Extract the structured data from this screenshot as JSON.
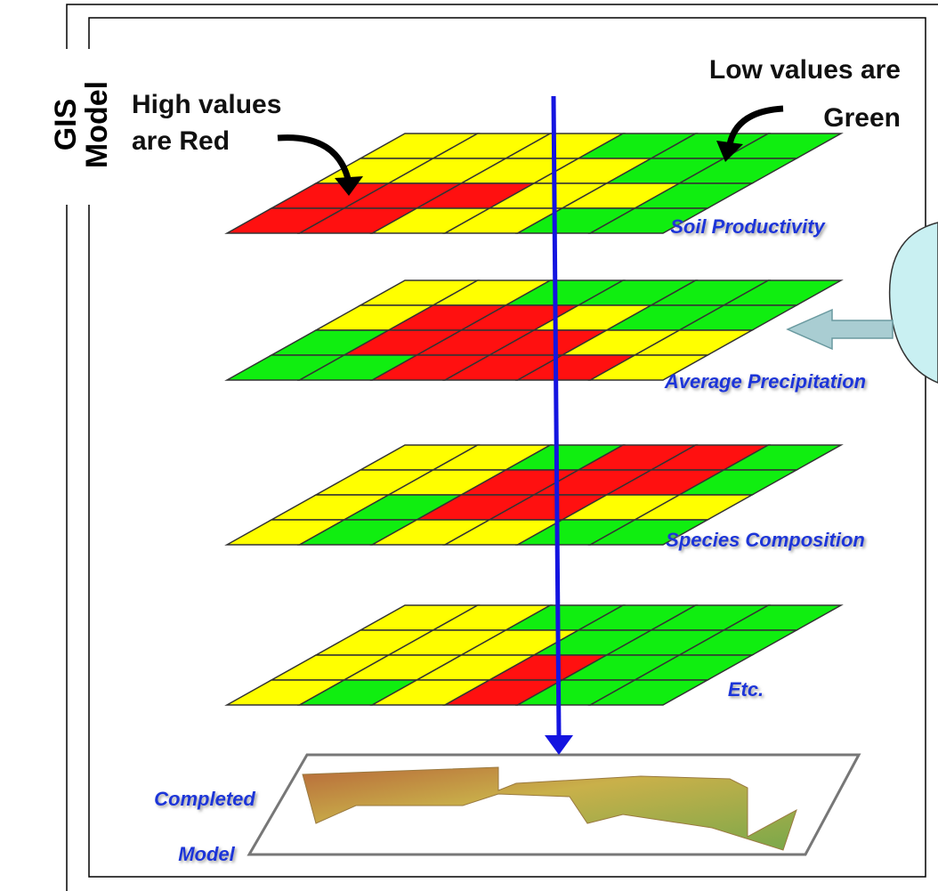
{
  "header": {
    "title_line1": "GIS",
    "title_line2": "Model"
  },
  "annotations": {
    "high": [
      "High values",
      "are Red"
    ],
    "low": [
      "Low values are",
      "Green"
    ]
  },
  "layers": [
    {
      "label": "Soil Productivity"
    },
    {
      "label": "Average Precipitation"
    },
    {
      "label": "Species Composition"
    },
    {
      "label": "Etc."
    }
  ],
  "completed": [
    "Completed",
    "Model"
  ]
}
